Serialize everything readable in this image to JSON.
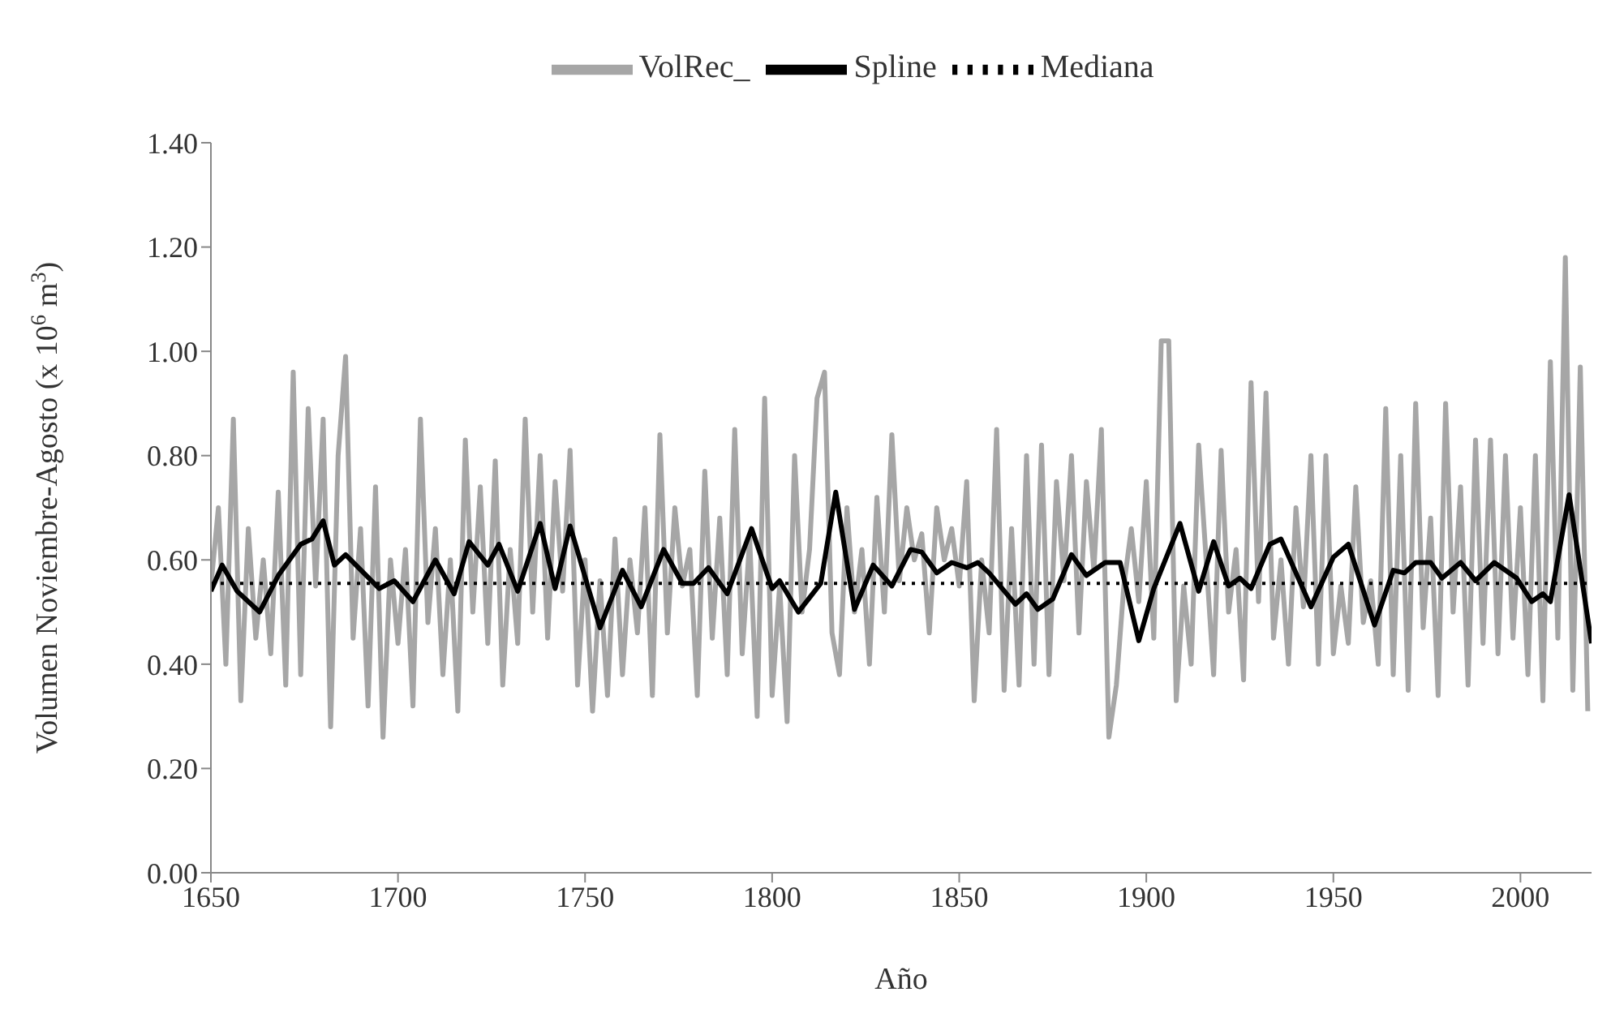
{
  "chart_data": {
    "type": "line",
    "xlabel": "Año",
    "ylabel": "Volumen Noviembre-Agosto (x 10$^{6}$ m$^{3}$)",
    "xlim": [
      1650,
      2019
    ],
    "xticks": [
      1650,
      1700,
      1750,
      1800,
      1850,
      1900,
      1950,
      2000
    ],
    "ylim": [
      0,
      1.4
    ],
    "yticks": [
      {
        "value": 0,
        "label": "0.00"
      },
      {
        "value": 0.2,
        "label": "0.20"
      },
      {
        "value": 0.4,
        "label": "0.40"
      },
      {
        "value": 0.6,
        "label": "0.60"
      },
      {
        "value": 0.8,
        "label": "0.80"
      },
      {
        "value": 1,
        "label": "1.00"
      },
      {
        "value": 1.2,
        "label": "1.20"
      },
      {
        "value": 1.4,
        "label": "1.40"
      }
    ],
    "grid": false,
    "legend": "top",
    "series": [
      {
        "name": "VolRec_",
        "color": "#a6a6a6",
        "line_style": "solid",
        "x": [
          1650,
          1652,
          1654,
          1656,
          1658,
          1660,
          1662,
          1664,
          1666,
          1668,
          1670,
          1672,
          1674,
          1676,
          1678,
          1680,
          1682,
          1684,
          1686,
          1688,
          1690,
          1692,
          1694,
          1696,
          1698,
          1700,
          1702,
          1704,
          1706,
          1708,
          1710,
          1712,
          1714,
          1716,
          1718,
          1720,
          1722,
          1724,
          1726,
          1728,
          1730,
          1732,
          1734,
          1736,
          1738,
          1740,
          1742,
          1744,
          1746,
          1748,
          1750,
          1752,
          1754,
          1756,
          1758,
          1760,
          1762,
          1764,
          1766,
          1768,
          1770,
          1772,
          1774,
          1776,
          1778,
          1780,
          1782,
          1784,
          1786,
          1788,
          1790,
          1792,
          1794,
          1796,
          1798,
          1800,
          1802,
          1804,
          1806,
          1808,
          1810,
          1812,
          1814,
          1816,
          1818,
          1820,
          1822,
          1824,
          1826,
          1828,
          1830,
          1832,
          1834,
          1836,
          1838,
          1840,
          1842,
          1844,
          1846,
          1848,
          1850,
          1852,
          1854,
          1856,
          1858,
          1860,
          1862,
          1864,
          1866,
          1868,
          1870,
          1872,
          1874,
          1876,
          1878,
          1880,
          1882,
          1884,
          1886,
          1888,
          1890,
          1892,
          1894,
          1896,
          1898,
          1900,
          1902,
          1904,
          1906,
          1908,
          1910,
          1912,
          1914,
          1916,
          1918,
          1920,
          1922,
          1924,
          1926,
          1928,
          1930,
          1932,
          1934,
          1936,
          1938,
          1940,
          1942,
          1944,
          1946,
          1948,
          1950,
          1952,
          1954,
          1956,
          1958,
          1960,
          1962,
          1964,
          1966,
          1968,
          1970,
          1972,
          1974,
          1976,
          1978,
          1980,
          1982,
          1984,
          1986,
          1988,
          1990,
          1992,
          1994,
          1996,
          1998,
          2000,
          2002,
          2004,
          2006,
          2008,
          2010,
          2012,
          2014,
          2016,
          2018
        ],
        "values": [
          0.55,
          0.7,
          0.4,
          0.87,
          0.33,
          0.66,
          0.45,
          0.6,
          0.42,
          0.73,
          0.36,
          0.96,
          0.38,
          0.89,
          0.55,
          0.87,
          0.28,
          0.8,
          0.99,
          0.45,
          0.66,
          0.32,
          0.74,
          0.26,
          0.6,
          0.44,
          0.62,
          0.32,
          0.87,
          0.48,
          0.66,
          0.38,
          0.6,
          0.31,
          0.83,
          0.5,
          0.74,
          0.44,
          0.79,
          0.36,
          0.62,
          0.44,
          0.87,
          0.5,
          0.8,
          0.45,
          0.75,
          0.54,
          0.81,
          0.36,
          0.6,
          0.31,
          0.56,
          0.34,
          0.64,
          0.38,
          0.6,
          0.46,
          0.7,
          0.34,
          0.84,
          0.46,
          0.7,
          0.55,
          0.62,
          0.34,
          0.77,
          0.45,
          0.68,
          0.38,
          0.85,
          0.42,
          0.64,
          0.3,
          0.91,
          0.34,
          0.55,
          0.29,
          0.8,
          0.5,
          0.62,
          0.91,
          0.96,
          0.46,
          0.38,
          0.7,
          0.5,
          0.62,
          0.4,
          0.72,
          0.5,
          0.84,
          0.56,
          0.7,
          0.6,
          0.65,
          0.46,
          0.7,
          0.6,
          0.66,
          0.55,
          0.75,
          0.33,
          0.6,
          0.46,
          0.85,
          0.35,
          0.66,
          0.36,
          0.8,
          0.4,
          0.82,
          0.38,
          0.75,
          0.56,
          0.8,
          0.46,
          0.75,
          0.58,
          0.85,
          0.26,
          0.36,
          0.55,
          0.66,
          0.52,
          0.75,
          0.45,
          1.02,
          1.02,
          0.33,
          0.55,
          0.4,
          0.82,
          0.6,
          0.38,
          0.81,
          0.5,
          0.62,
          0.37,
          0.94,
          0.52,
          0.92,
          0.45,
          0.6,
          0.4,
          0.7,
          0.51,
          0.8,
          0.4,
          0.8,
          0.42,
          0.55,
          0.44,
          0.74,
          0.48,
          0.56,
          0.4,
          0.89,
          0.38,
          0.8,
          0.35,
          0.9,
          0.47,
          0.68,
          0.34,
          0.9,
          0.5,
          0.74,
          0.36,
          0.83,
          0.44,
          0.83,
          0.42,
          0.8,
          0.45,
          0.7,
          0.38,
          0.8,
          0.33,
          0.98,
          0.45,
          1.18,
          0.35,
          0.97,
          0.31
        ]
      },
      {
        "name": "Spline",
        "color": "#000000",
        "line_style": "solid",
        "x": [
          1650,
          1653,
          1657,
          1663,
          1668,
          1674,
          1677,
          1680,
          1683,
          1686,
          1695,
          1699,
          1704,
          1710,
          1715,
          1719,
          1724,
          1727,
          1732,
          1738,
          1742,
          1746,
          1754,
          1760,
          1765,
          1771,
          1776,
          1779,
          1783,
          1788,
          1794.5,
          1800,
          1802,
          1807,
          1813,
          1817,
          1822,
          1827,
          1832,
          1837,
          1840,
          1844,
          1848,
          1852,
          1855,
          1858,
          1865,
          1868,
          1871,
          1875,
          1880,
          1884,
          1889,
          1893,
          1898,
          1902,
          1909,
          1914,
          1918,
          1922,
          1925,
          1928,
          1933,
          1936,
          1944,
          1950,
          1954,
          1961,
          1966,
          1969,
          1972,
          1976,
          1979,
          1984,
          1988,
          1993,
          1999,
          2003,
          2006,
          2008,
          2013,
          2019
        ],
        "values": [
          0.54,
          0.59,
          0.54,
          0.5,
          0.57,
          0.63,
          0.64,
          0.675,
          0.59,
          0.61,
          0.545,
          0.56,
          0.52,
          0.6,
          0.535,
          0.635,
          0.59,
          0.63,
          0.54,
          0.67,
          0.545,
          0.665,
          0.47,
          0.58,
          0.51,
          0.62,
          0.555,
          0.555,
          0.585,
          0.535,
          0.66,
          0.545,
          0.56,
          0.5,
          0.555,
          0.73,
          0.505,
          0.59,
          0.55,
          0.62,
          0.615,
          0.575,
          0.595,
          0.585,
          0.595,
          0.575,
          0.515,
          0.535,
          0.505,
          0.525,
          0.61,
          0.57,
          0.595,
          0.595,
          0.445,
          0.545,
          0.67,
          0.54,
          0.635,
          0.55,
          0.565,
          0.545,
          0.63,
          0.64,
          0.51,
          0.605,
          0.63,
          0.475,
          0.58,
          0.575,
          0.595,
          0.595,
          0.565,
          0.595,
          0.56,
          0.595,
          0.565,
          0.52,
          0.535,
          0.52,
          0.725,
          0.44
        ]
      },
      {
        "name": "Mediana",
        "color": "#000000",
        "line_style": "dotted",
        "x": [
          1650,
          2019
        ],
        "values": [
          0.555,
          0.555
        ]
      }
    ]
  }
}
